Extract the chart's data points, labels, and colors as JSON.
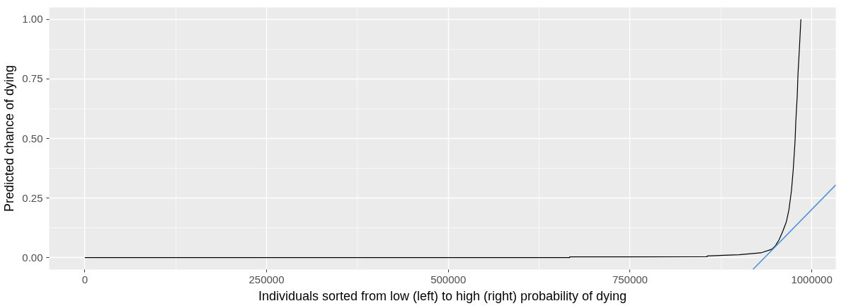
{
  "chart_data": {
    "type": "line",
    "xlabel": "Individuals sorted from low (left) to high (right) probability of dying",
    "ylabel": "Predicted chance of dying",
    "xlim": [
      -49000,
      1033000
    ],
    "ylim": [
      -0.05,
      1.05
    ],
    "xticks": [
      0,
      250000,
      500000,
      750000,
      1000000
    ],
    "yticks": [
      {
        "value": 0,
        "label": "0.00"
      },
      {
        "value": 0.25,
        "label": "0.25"
      },
      {
        "value": 0.5,
        "label": "0.50"
      },
      {
        "value": 0.75,
        "label": "0.75"
      },
      {
        "value": 1,
        "label": "1.00"
      }
    ],
    "grid": true,
    "series": [
      {
        "color": "#000000",
        "x": [
          0,
          667000,
          667001,
          750000,
          856000,
          856001,
          900000,
          930000,
          945000,
          950000,
          955000,
          960000,
          965000,
          968500,
          972000,
          974500,
          977000,
          978000,
          980000,
          981000,
          983000,
          985000
        ],
        "values": [
          0,
          0,
          0.003,
          0.003,
          0.004,
          0.007,
          0.012,
          0.02,
          0.035,
          0.05,
          0.075,
          0.11,
          0.15,
          0.2,
          0.28,
          0.37,
          0.49,
          0.57,
          0.68,
          0.77,
          0.88,
          1.0
        ]
      },
      {
        "color": "#4a90d9",
        "x": [
          919000,
          1033000
        ],
        "values": [
          -0.05,
          0.305
        ]
      }
    ]
  }
}
